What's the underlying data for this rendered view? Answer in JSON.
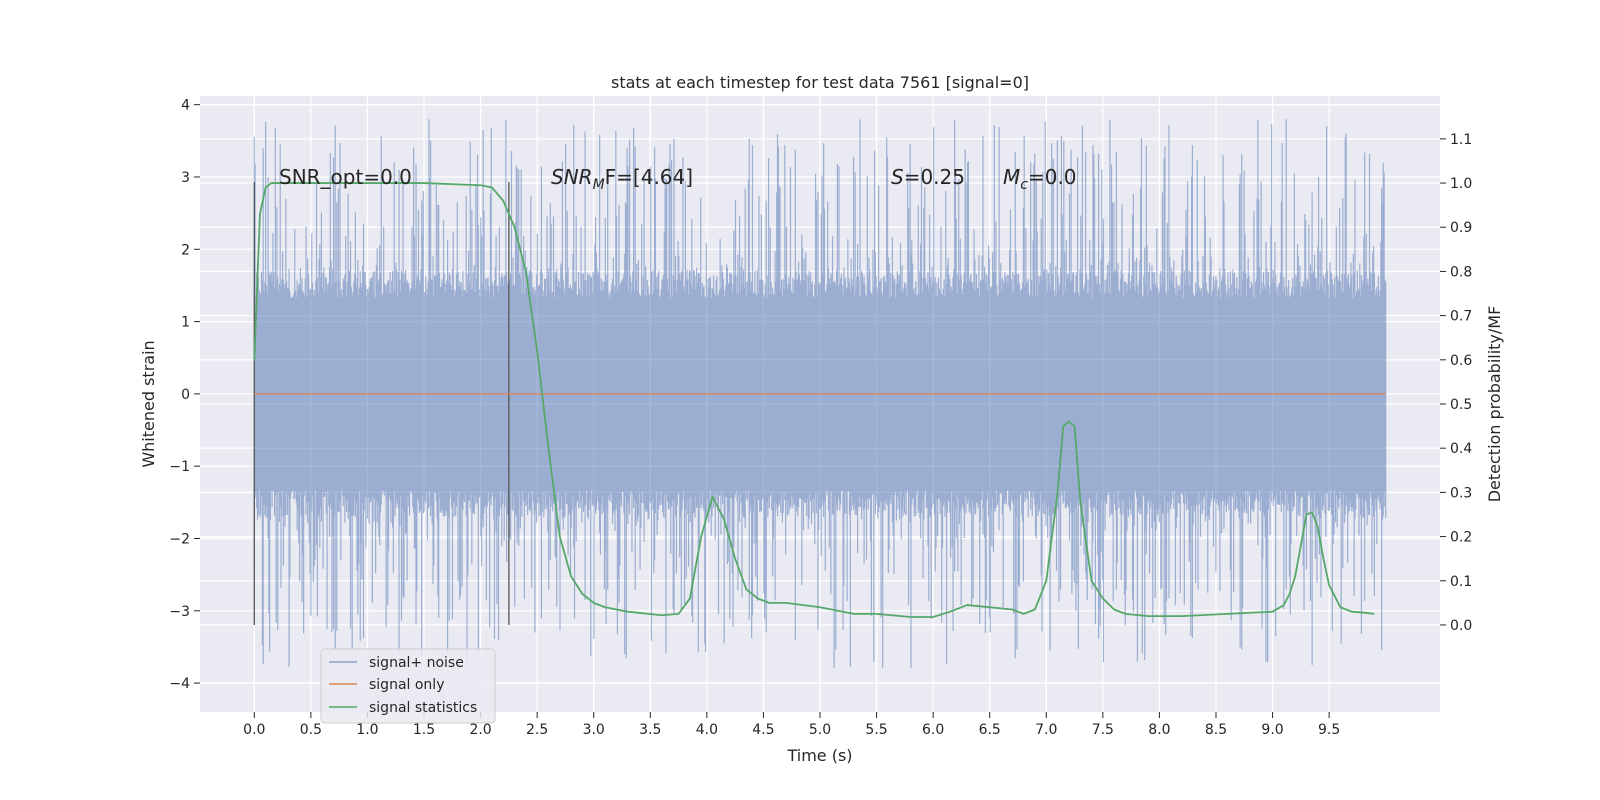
{
  "chart_data": {
    "type": "line",
    "title": "stats at each timestep for test data 7561 [signal=0]",
    "xlabel": "Time (s)",
    "ylabel": "Whitened strain",
    "y2label": "Detection probability/MF",
    "xlim": [
      -0.48,
      10.48
    ],
    "ylim": [
      -4.4,
      4.12
    ],
    "y2lim": [
      -0.197,
      1.197
    ],
    "x_ticks": [
      "0.0",
      "0.5",
      "1.0",
      "1.5",
      "2.0",
      "2.5",
      "3.0",
      "3.5",
      "4.0",
      "4.5",
      "5.0",
      "5.5",
      "6.0",
      "6.5",
      "7.0",
      "7.5",
      "8.0",
      "8.5",
      "9.0",
      "9.5"
    ],
    "y_ticks": [
      "4",
      "3",
      "2",
      "1",
      "0",
      "−1",
      "−2",
      "−3",
      "−4"
    ],
    "y2_ticks": [
      "1.1",
      "1.0",
      "0.9",
      "0.8",
      "0.7",
      "0.6",
      "0.5",
      "0.4",
      "0.3",
      "0.2",
      "0.1",
      "0.0"
    ],
    "grid": true,
    "background": "#eaeaf2",
    "annotations": {
      "snr_opt": "SNR_opt=0.0",
      "snr_mf_base": "SNR",
      "snr_mf_sub": "M",
      "snr_mf_rest": "F=[4.64]",
      "s_var": "S",
      "s_val": "=0.25",
      "mc_base": "M",
      "mc_sub": "c",
      "mc_val": "=0.0"
    },
    "vertical_markers": [
      0.0,
      2.25
    ],
    "series": [
      {
        "name": "signal+ noise",
        "color": "#4c72b0",
        "axis": "left",
        "kind": "noise-band",
        "x_range": [
          0.0,
          10.0
        ],
        "core_band": [
          -1.7,
          1.7
        ],
        "extreme_range": [
          -3.8,
          3.8
        ]
      },
      {
        "name": "signal only",
        "color": "#dd8452",
        "axis": "left",
        "x": [
          0.0,
          10.0
        ],
        "y": [
          0.0,
          0.0
        ]
      },
      {
        "name": "signal statistics",
        "color": "#55a868",
        "axis": "right",
        "x": [
          0.0,
          0.05,
          0.1,
          0.15,
          0.2,
          0.3,
          0.5,
          1.0,
          1.5,
          2.0,
          2.1,
          2.2,
          2.3,
          2.4,
          2.5,
          2.6,
          2.7,
          2.8,
          2.9,
          3.0,
          3.1,
          3.3,
          3.6,
          3.75,
          3.85,
          3.95,
          4.05,
          4.15,
          4.25,
          4.35,
          4.45,
          4.55,
          4.7,
          5.0,
          5.3,
          5.5,
          5.8,
          6.0,
          6.15,
          6.3,
          6.5,
          6.7,
          6.8,
          6.9,
          7.0,
          7.1,
          7.15,
          7.2,
          7.25,
          7.3,
          7.4,
          7.5,
          7.6,
          7.7,
          7.9,
          8.2,
          8.6,
          9.0,
          9.1,
          9.15,
          9.2,
          9.25,
          9.3,
          9.35,
          9.4,
          9.45,
          9.5,
          9.6,
          9.7,
          9.8,
          9.9
        ],
        "y": [
          0.6,
          0.93,
          0.99,
          1.0,
          1.0,
          1.0,
          1.0,
          1.0,
          1.0,
          0.995,
          0.99,
          0.96,
          0.9,
          0.8,
          0.62,
          0.4,
          0.2,
          0.11,
          0.07,
          0.05,
          0.04,
          0.03,
          0.022,
          0.025,
          0.06,
          0.2,
          0.29,
          0.24,
          0.15,
          0.08,
          0.06,
          0.05,
          0.05,
          0.04,
          0.025,
          0.025,
          0.018,
          0.018,
          0.03,
          0.045,
          0.04,
          0.035,
          0.025,
          0.035,
          0.1,
          0.3,
          0.45,
          0.46,
          0.45,
          0.28,
          0.1,
          0.06,
          0.035,
          0.025,
          0.02,
          0.02,
          0.025,
          0.03,
          0.045,
          0.07,
          0.11,
          0.18,
          0.25,
          0.255,
          0.22,
          0.15,
          0.09,
          0.04,
          0.03,
          0.028,
          0.025
        ]
      }
    ],
    "legend": {
      "position": "lower-left",
      "entries": [
        "signal+ noise",
        "signal only",
        "signal statistics"
      ]
    }
  }
}
